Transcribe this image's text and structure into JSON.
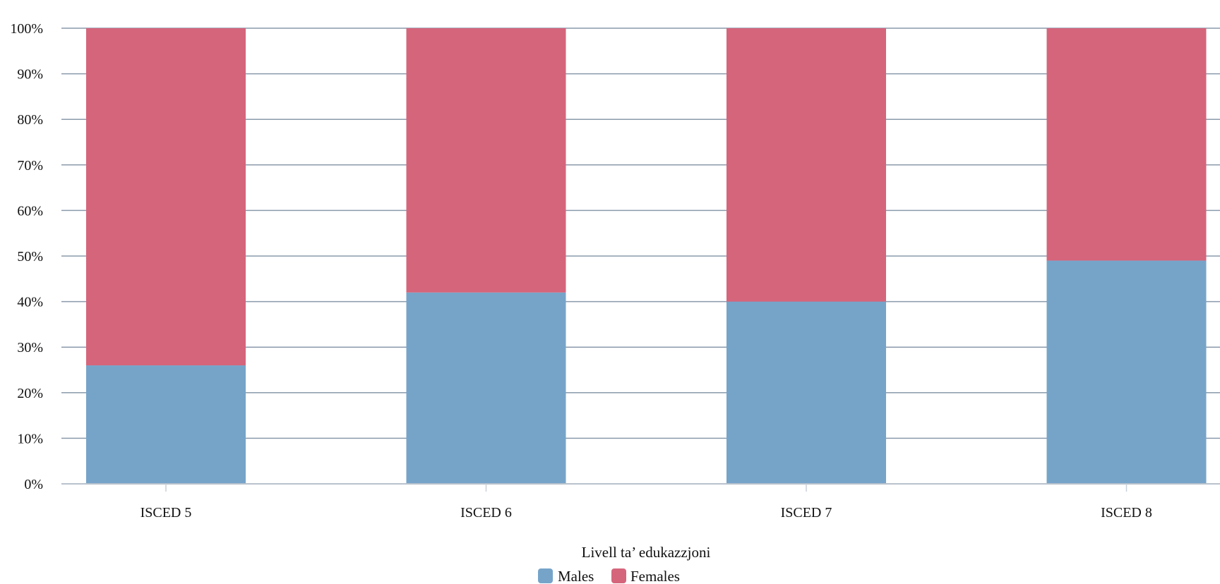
{
  "chart_data": {
    "type": "bar",
    "stacked": true,
    "categories": [
      "ISCED 5",
      "ISCED 6",
      "ISCED 7",
      "ISCED 8"
    ],
    "series": [
      {
        "name": "Males",
        "values": [
          26,
          42,
          40,
          49
        ],
        "color": "#76a4c9"
      },
      {
        "name": "Females",
        "values": [
          74,
          58,
          60,
          51
        ],
        "color": "#d5657b"
      }
    ],
    "title": "",
    "xlabel": "Livell ta’ edukazzjoni",
    "ylabel": "",
    "ylim": [
      0,
      100
    ],
    "y_ticks": [
      "0%",
      "10%",
      "20%",
      "30%",
      "40%",
      "50%",
      "60%",
      "70%",
      "80%",
      "90%",
      "100%"
    ],
    "grid": true,
    "legend": "bottom-center"
  }
}
